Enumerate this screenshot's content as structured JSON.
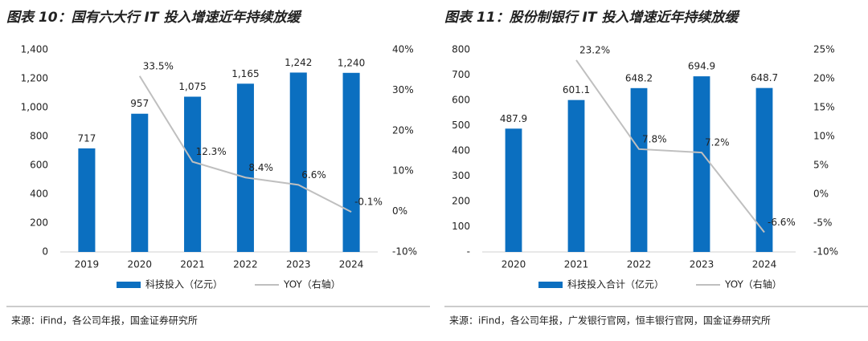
{
  "chart_data": [
    {
      "type": "bar_line",
      "title": "图表 10：国有六大行 IT 投入增速近年持续放缓",
      "categories": [
        "2019",
        "2020",
        "2021",
        "2022",
        "2023",
        "2024"
      ],
      "series": [
        {
          "name": "科技投入（亿元）",
          "color": "#0b6fc0",
          "values": [
            717,
            957,
            1075,
            1165,
            1242,
            1240
          ],
          "value_labels": [
            "717",
            "957",
            "1,075",
            "1,165",
            "1,242",
            "1,240"
          ]
        },
        {
          "name": "YOY（右轴）",
          "color": "#bfbfbf",
          "axis": "y2",
          "values": [
            null,
            33.5,
            12.3,
            8.4,
            6.6,
            -0.1
          ],
          "value_labels": [
            null,
            "33.5%",
            "12.3%",
            "8.4%",
            "6.6%",
            "-0.1%"
          ]
        }
      ],
      "ylim": [
        0,
        1400
      ],
      "yticks": [
        0,
        200,
        400,
        600,
        800,
        {
          "value": 1000,
          "label": "1,000"
        },
        {
          "value": 1200,
          "label": "1,200"
        },
        {
          "value": 1400,
          "label": "1,400"
        }
      ],
      "y2lim": [
        -10,
        40
      ],
      "y2ticks": [
        {
          "value": -10,
          "label": "-10%"
        },
        {
          "value": 0,
          "label": "0%"
        },
        {
          "value": 10,
          "label": "10%"
        },
        {
          "value": 20,
          "label": "20%"
        },
        {
          "value": 30,
          "label": "30%"
        },
        {
          "value": 40,
          "label": "40%"
        }
      ],
      "source": "来源：iFind，各公司年报，国金证券研究所"
    },
    {
      "type": "bar_line",
      "title": "图表 11：股份制银行 IT 投入增速近年持续放缓",
      "categories": [
        "2020",
        "2021",
        "2022",
        "2023",
        "2024"
      ],
      "series": [
        {
          "name": "科技投入合计（亿元）",
          "color": "#0b6fc0",
          "values": [
            487.9,
            601.1,
            648.2,
            694.9,
            648.7
          ]
        },
        {
          "name": "YOY（右轴）",
          "color": "#bfbfbf",
          "axis": "y2",
          "values": [
            null,
            23.2,
            7.8,
            7.2,
            -6.6
          ],
          "value_labels": [
            null,
            "23.2%",
            "7.8%",
            "7.2%",
            "-6.6%"
          ]
        }
      ],
      "ylim": [
        0,
        800
      ],
      "yticks": [
        {
          "value": 0,
          "label": "-"
        },
        100,
        200,
        300,
        400,
        500,
        600,
        700,
        800
      ],
      "y2lim": [
        -10,
        25
      ],
      "y2ticks": [
        {
          "value": -10,
          "label": "-10%"
        },
        {
          "value": -5,
          "label": "-5%"
        },
        {
          "value": 0,
          "label": "0%"
        },
        {
          "value": 5,
          "label": "5%"
        },
        {
          "value": 10,
          "label": "10%"
        },
        {
          "value": 15,
          "label": "15%"
        },
        {
          "value": 20,
          "label": "20%"
        },
        {
          "value": 25,
          "label": "25%"
        }
      ],
      "source": "来源：iFind，各公司年报，广发银行官网，恒丰银行官网，国金证券研究所"
    }
  ]
}
